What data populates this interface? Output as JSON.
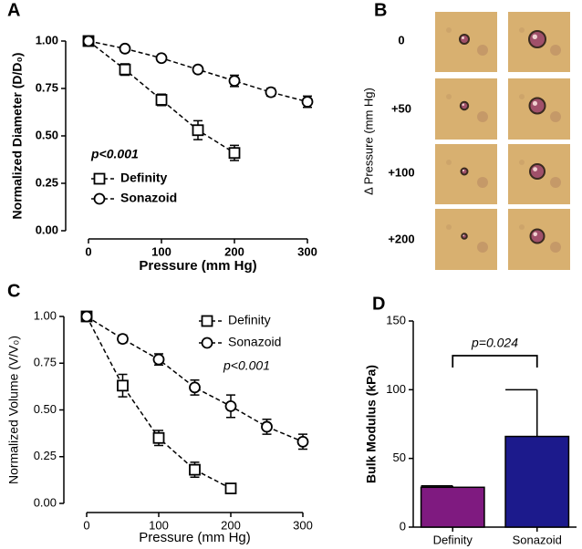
{
  "panel_labels": [
    "A",
    "B",
    "C",
    "D"
  ],
  "image_panel": {
    "ylabel": "Δ Pressure (mm Hg)",
    "row_labels": [
      "0",
      "+50",
      "+100",
      "+200"
    ]
  },
  "chart_data": [
    {
      "type": "line",
      "xlabel": "Pressure (mm Hg)",
      "ylabel": "Normalized Diameter (D/D₀)",
      "annotation": "p<0.001",
      "legend": "lower left",
      "xlim": [
        0,
        300
      ],
      "xticks": [
        0,
        100,
        200,
        300
      ],
      "ylim": [
        0,
        1
      ],
      "yticks": [
        {
          "value": 0,
          "label": "0.00"
        },
        {
          "value": 0.25,
          "label": "0.25"
        },
        {
          "value": 0.5,
          "label": "0.50"
        },
        {
          "value": 0.75,
          "label": "0.75"
        },
        {
          "value": 1,
          "label": "1.00"
        }
      ],
      "series": [
        {
          "name": "Definity",
          "marker": "square",
          "color": "#000000",
          "x": [
            0,
            50,
            100,
            150,
            200
          ],
          "values": [
            1.0,
            0.85,
            0.69,
            0.53,
            0.41
          ],
          "errors": [
            0,
            0.03,
            0.03,
            0.05,
            0.04
          ]
        },
        {
          "name": "Sonazoid",
          "marker": "circle",
          "color": "#000000",
          "x": [
            0,
            50,
            100,
            150,
            200,
            250,
            300
          ],
          "values": [
            1.0,
            0.96,
            0.91,
            0.85,
            0.79,
            0.73,
            0.68
          ],
          "errors": [
            0,
            0.01,
            0.01,
            0.01,
            0.03,
            0.02,
            0.03
          ]
        }
      ]
    },
    {
      "type": "line",
      "xlabel": "Pressure (mm Hg)",
      "ylabel": "Normalized Volume (V/V₀)",
      "annotation": "p<0.001",
      "legend": "upper right",
      "xlim": [
        0,
        300
      ],
      "xticks": [
        0,
        100,
        200,
        300
      ],
      "ylim": [
        0,
        1
      ],
      "yticks": [
        {
          "value": 0,
          "label": "0.00"
        },
        {
          "value": 0.25,
          "label": "0.25"
        },
        {
          "value": 0.5,
          "label": "0.50"
        },
        {
          "value": 0.75,
          "label": "0.75"
        },
        {
          "value": 1,
          "label": "1.00"
        }
      ],
      "series": [
        {
          "name": "Definity",
          "marker": "square",
          "color": "#000000",
          "x": [
            0,
            50,
            100,
            150,
            200
          ],
          "values": [
            1.0,
            0.63,
            0.35,
            0.18,
            0.08
          ],
          "errors": [
            0,
            0.06,
            0.04,
            0.04,
            0.02
          ]
        },
        {
          "name": "Sonazoid",
          "marker": "circle",
          "color": "#000000",
          "x": [
            0,
            50,
            100,
            150,
            200,
            250,
            300
          ],
          "values": [
            1.0,
            0.88,
            0.77,
            0.62,
            0.52,
            0.41,
            0.33
          ],
          "errors": [
            0,
            0.02,
            0.03,
            0.04,
            0.06,
            0.04,
            0.04
          ]
        }
      ]
    },
    {
      "type": "bar",
      "ylabel": "Bulk Modulus (kPa)",
      "annotation": "p=0.024",
      "categories": [
        "Definity",
        "Sonazoid"
      ],
      "values": [
        29,
        66
      ],
      "errors": [
        1,
        34
      ],
      "colors": [
        "#7f1a80",
        "#1c1a8c"
      ],
      "ylim": [
        0,
        150
      ],
      "yticks": [
        0,
        50,
        100,
        150
      ]
    }
  ]
}
